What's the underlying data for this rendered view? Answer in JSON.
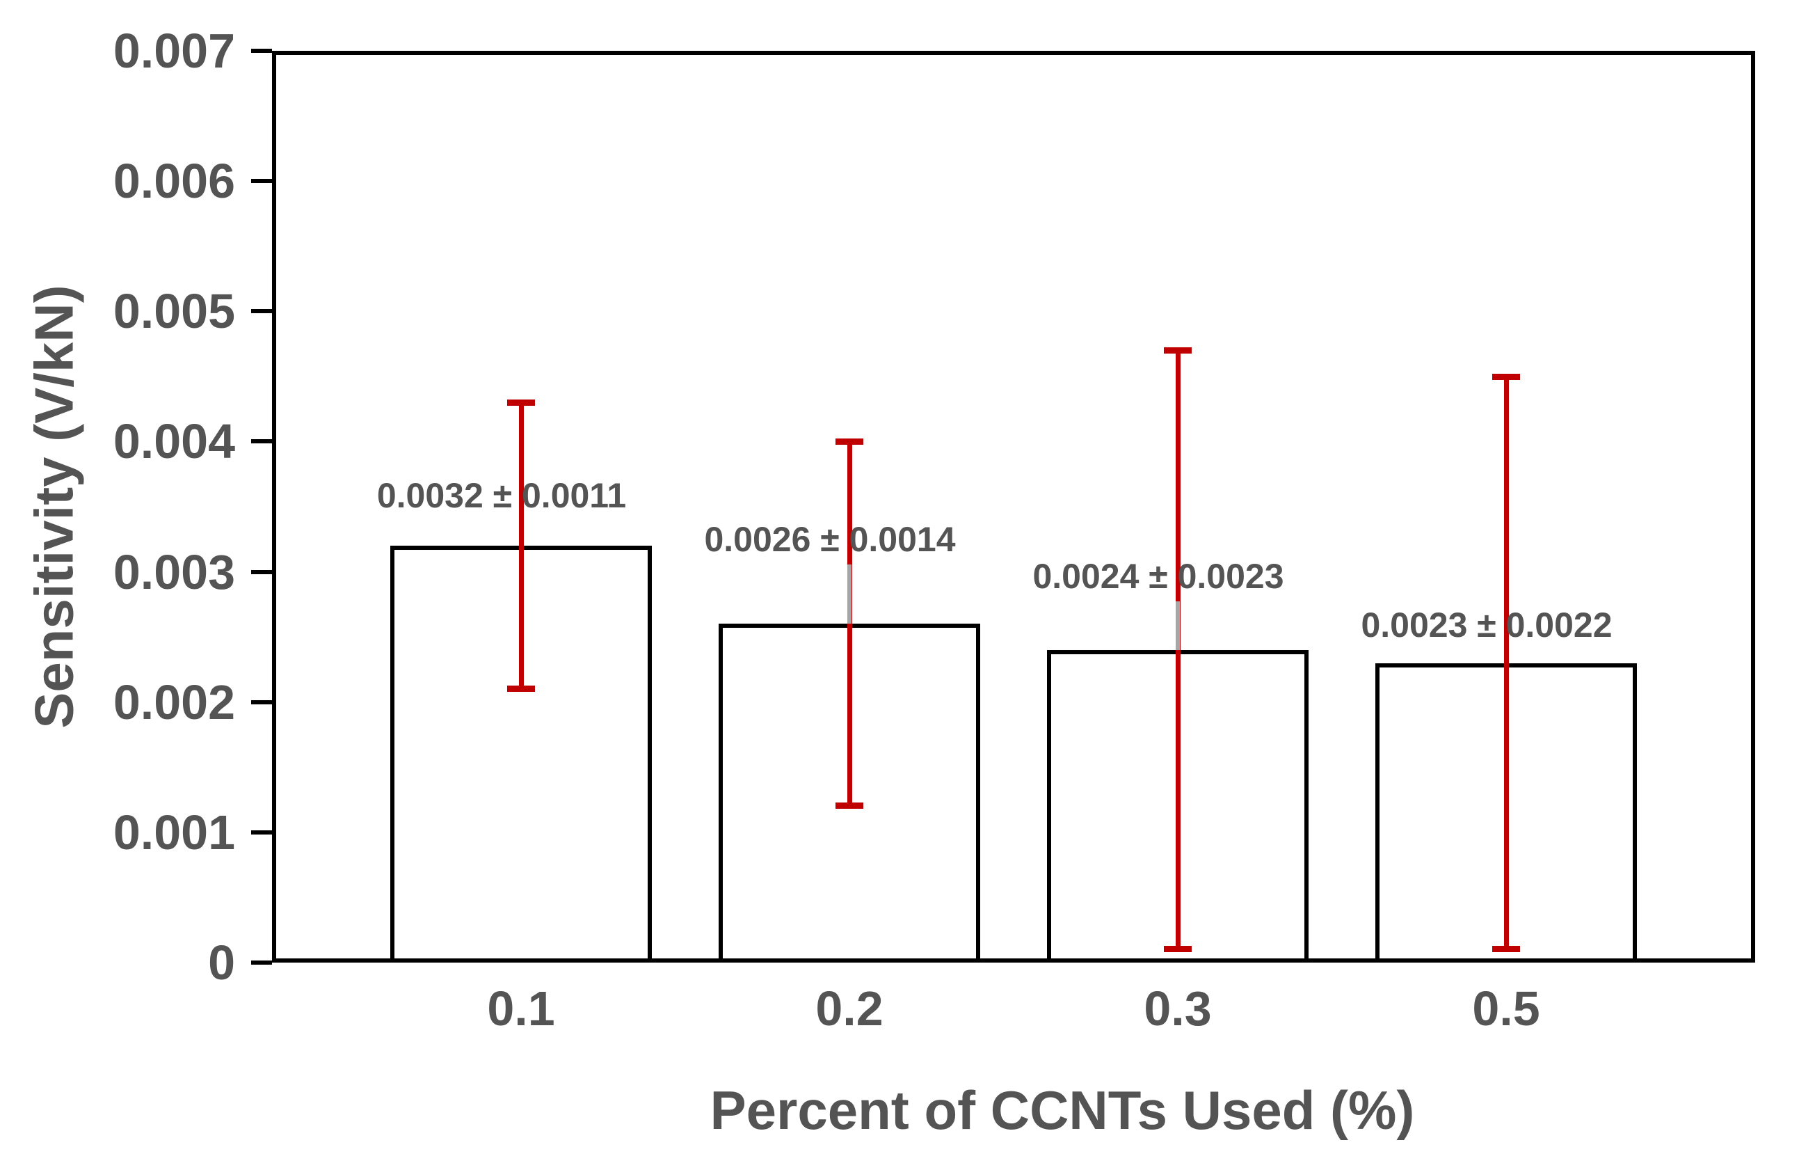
{
  "chart_data": {
    "type": "bar",
    "title": "",
    "xlabel": "Percent of CCNTs Used (%)",
    "ylabel": "Sensitivity (V/kN)",
    "categories": [
      "0.1",
      "0.2",
      "0.3",
      "0.5"
    ],
    "values": [
      0.0032,
      0.0026,
      0.0024,
      0.0023
    ],
    "errors": [
      0.0011,
      0.0014,
      0.0023,
      0.0022
    ],
    "data_labels": [
      "0.0032 ± 0.0011",
      "0.0026 ± 0.0014",
      "0.0024 ± 0.0023",
      "0.0023 ± 0.0022"
    ],
    "y_ticks": [
      "0.007",
      "0.006",
      "0.005",
      "0.004",
      "0.003",
      "0.002",
      "0.001",
      "0"
    ],
    "ylim": [
      0,
      0.007
    ],
    "grid": false,
    "legend": false,
    "bar_fill": "#FFFFFF",
    "bar_border": "#000000",
    "error_bar_color": "#C00000",
    "leader_line_color": "#A6A6A6",
    "text_color": "#545454",
    "axis_color": "#000000"
  }
}
